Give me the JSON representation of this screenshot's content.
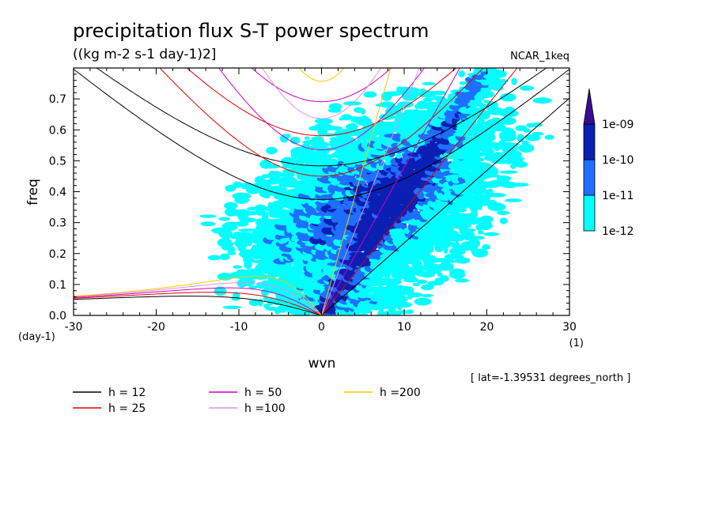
{
  "chart_data": {
    "type": "heatmap",
    "title": "precipitation flux S-T power spectrum",
    "subtitle": "((kg m-2 s-1 day-1)2]",
    "model_label": "NCAR_1keq",
    "xlabel": "wvn",
    "ylabel": "freq",
    "x_unit_label": "(1)",
    "y_unit_label": "(day-1)",
    "xlim": [
      -30,
      30
    ],
    "ylim": [
      0,
      0.8
    ],
    "xticks": [
      "-30",
      "-20",
      "-10",
      "0",
      "10",
      "20",
      "30"
    ],
    "yticks": [
      "0.0",
      "0.1",
      "0.2",
      "0.3",
      "0.4",
      "0.5",
      "0.6",
      "0.7"
    ],
    "colorbar": {
      "labels": [
        "1e-12",
        "1e-11",
        "1e-10",
        "1e-09"
      ],
      "colors": [
        "#00ffff",
        "#1e6fff",
        "#0a1fb4",
        "#3a0a96"
      ]
    },
    "dispersion_curves": [
      {
        "name": "h = 12",
        "color": "#000000"
      },
      {
        "name": "h = 25",
        "color": "#e00000"
      },
      {
        "name": "h = 50",
        "color": "#d000c0"
      },
      {
        "name": "h =100",
        "color": "#e090e0"
      },
      {
        "name": "h =200",
        "color": "#f0c800"
      }
    ],
    "footnote": "[ lat=-1.39531 degrees_north ]",
    "grid": false,
    "legend_position": "bottom-left"
  }
}
